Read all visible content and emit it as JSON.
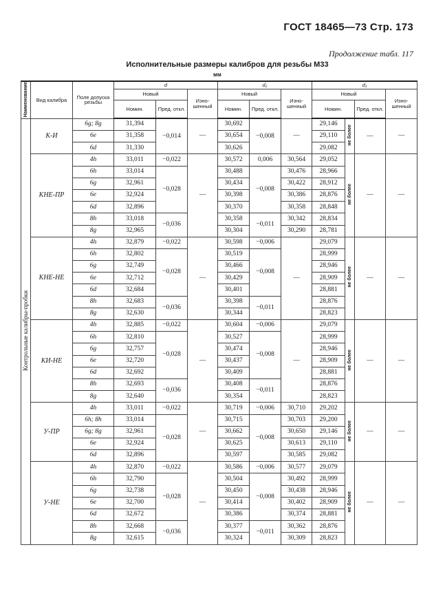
{
  "page_header": "ГОСТ 18465—73 Стр. 173",
  "continuation": "Продолжение табл. 117",
  "table_title": "Исполнительные размеры калибров для резьбы М33",
  "unit": "мм",
  "headers": {
    "name": "Наименование",
    "calibre_type": "Вид калибра",
    "tolerance_field": "Поле допуска резьбы",
    "d": "d",
    "d2": "d₂",
    "d1": "d₁",
    "new": "Новый",
    "nominal": "Номин.",
    "deviation": "Пред. откл.",
    "worn": "Изно­шенный"
  },
  "name_value": "Контрольные калибры-пробки",
  "groups": [
    {
      "calibre": "К-И",
      "fields": [
        "6g; 8g",
        "6e",
        "6d"
      ],
      "d_nom": [
        "31,394",
        "31,358",
        "31,330"
      ],
      "d_pred": [
        {
          "v": "−0,014",
          "n": 3
        }
      ],
      "d_worn": "—",
      "d2_nom": [
        "30,692",
        "30,654",
        "30,626"
      ],
      "d2_pred": [
        {
          "v": "−0,008",
          "n": 3
        }
      ],
      "d2_worn": "—",
      "d1_nom": [
        "29,146",
        "29,110",
        "29,082"
      ],
      "d1_note": "не более",
      "d1_pred": "—",
      "d1_worn": "—"
    },
    {
      "calibre": "КНЕ-ПР",
      "fields": [
        "4h",
        "6h",
        "6g",
        "6e",
        "6d",
        "8h",
        "8g"
      ],
      "d_nom": [
        "33,011",
        "33,014",
        "32,961",
        "32,924",
        "32,896",
        "33,018",
        "32,965"
      ],
      "d_pred": [
        {
          "v": "−0,022",
          "n": 1
        },
        {
          "v": "−0,028",
          "n": 4
        },
        {
          "v": "−0,036",
          "n": 2
        }
      ],
      "d_worn": "—",
      "d2_nom": [
        "30,572",
        "30,488",
        "30,434",
        "30,398",
        "30,370",
        "30,358",
        "30,304"
      ],
      "d2_pred": [
        {
          "v": "0,006",
          "n": 1
        },
        {
          "v": "−0,008",
          "n": 4
        },
        {
          "v": "−0,011",
          "n": 2
        }
      ],
      "d2_worn": [
        "30,564",
        "30,476",
        "30,422",
        "30,386",
        "30,358",
        "30,342",
        "30,290"
      ],
      "d1_nom": [
        "29,052",
        "28,966",
        "28,912",
        "28,876",
        "28,848",
        "28,834",
        "28,781"
      ],
      "d1_note": "не более",
      "d1_pred": "—",
      "d1_worn": "—"
    },
    {
      "calibre": "КНЕ-НЕ",
      "fields": [
        "4h",
        "6h",
        "6g",
        "6e",
        "6d",
        "8h",
        "8g"
      ],
      "d_nom": [
        "32,879",
        "32,802",
        "32,749",
        "32,712",
        "32,684",
        "32,683",
        "32,630"
      ],
      "d_pred": [
        {
          "v": "−0,022",
          "n": 1
        },
        {
          "v": "−0,028",
          "n": 4
        },
        {
          "v": "−0,036",
          "n": 2
        }
      ],
      "d_worn": "—",
      "d2_nom": [
        "30,598",
        "30,519",
        "30,466",
        "30,429",
        "30,401",
        "30,398",
        "30,344"
      ],
      "d2_pred": [
        {
          "v": "−0,006",
          "n": 1
        },
        {
          "v": "−0,008",
          "n": 4
        },
        {
          "v": "−0,011",
          "n": 2
        }
      ],
      "d2_worn": "—",
      "d1_nom": [
        "29,079",
        "28,999",
        "28,946",
        "28,909",
        "28,881",
        "28,876",
        "28,823"
      ],
      "d1_note": "не более",
      "d1_pred": "—",
      "d1_worn": "—"
    },
    {
      "calibre": "КИ-НЕ",
      "fields": [
        "4h",
        "6h",
        "6g",
        "6e",
        "6d",
        "8h",
        "8g"
      ],
      "d_nom": [
        "32,885",
        "32,810",
        "32,757",
        "32,720",
        "32,692",
        "32,693",
        "32,640"
      ],
      "d_pred": [
        {
          "v": "−0,022",
          "n": 1
        },
        {
          "v": "−0,028",
          "n": 4
        },
        {
          "v": "−0,036",
          "n": 2
        }
      ],
      "d_worn": "—",
      "d2_nom": [
        "30,604",
        "30,527",
        "30,474",
        "30,437",
        "30,409",
        "30,408",
        "30,354"
      ],
      "d2_pred": [
        {
          "v": "−0,006",
          "n": 1
        },
        {
          "v": "−0,008",
          "n": 4
        },
        {
          "v": "−0,011",
          "n": 2
        }
      ],
      "d2_worn": "—",
      "d1_nom": [
        "29,079",
        "28,999",
        "28,946",
        "28,909",
        "28,881",
        "28,876",
        "28,823"
      ],
      "d1_note": "не более",
      "d1_pred": "—",
      "d1_worn": "—"
    },
    {
      "calibre": "У-ПР",
      "fields": [
        "4h",
        "6h; 8h",
        "6g; 8g",
        "6e",
        "6d"
      ],
      "d_nom": [
        "33,011",
        "33,014",
        "32,961",
        "32,924",
        "32,896"
      ],
      "d_pred": [
        {
          "v": "−0,022",
          "n": 1
        },
        {
          "v": "−0,028",
          "n": 4
        }
      ],
      "d_worn": "—",
      "d2_nom": [
        "30,719",
        "30,715",
        "30,662",
        "30,625",
        "30,597"
      ],
      "d2_pred": [
        {
          "v": "−0,006",
          "n": 1
        },
        {
          "v": "−0,008",
          "n": 4
        }
      ],
      "d2_worn": [
        "30,710",
        "30,703",
        "30,650",
        "30,613",
        "30,585"
      ],
      "d1_nom": [
        "29,202",
        "29,200",
        "29,146",
        "29,110",
        "29,082"
      ],
      "d1_note": "не более",
      "d1_pred": "—",
      "d1_worn": "—"
    },
    {
      "calibre": "У-НЕ",
      "fields": [
        "4h",
        "6h",
        "6g",
        "6e",
        "6d",
        "8h",
        "8g"
      ],
      "d_nom": [
        "32,870",
        "32,790",
        "32,738",
        "32,700",
        "32,672",
        "32,668",
        "32,615"
      ],
      "d_pred": [
        {
          "v": "−0,022",
          "n": 1
        },
        {
          "v": "−0,028",
          "n": 4
        },
        {
          "v": "−0,036",
          "n": 2
        }
      ],
      "d_worn": "—",
      "d2_nom": [
        "30,586",
        "30,504",
        "30,450",
        "30,414",
        "30,386",
        "30,377",
        "30,324"
      ],
      "d2_pred": [
        {
          "v": "−0,006",
          "n": 1
        },
        {
          "v": "−0,008",
          "n": 4
        },
        {
          "v": "−0,011",
          "n": 2
        }
      ],
      "d2_worn": [
        "30,577",
        "30,492",
        "30,438",
        "30,402",
        "30,374",
        "30,362",
        "30,309"
      ],
      "d1_nom": [
        "29,079",
        "28,999",
        "28,946",
        "28,909",
        "28,881",
        "28,876",
        "28,823"
      ],
      "d1_note": "не более",
      "d1_pred": "—",
      "d1_worn": "—"
    }
  ]
}
